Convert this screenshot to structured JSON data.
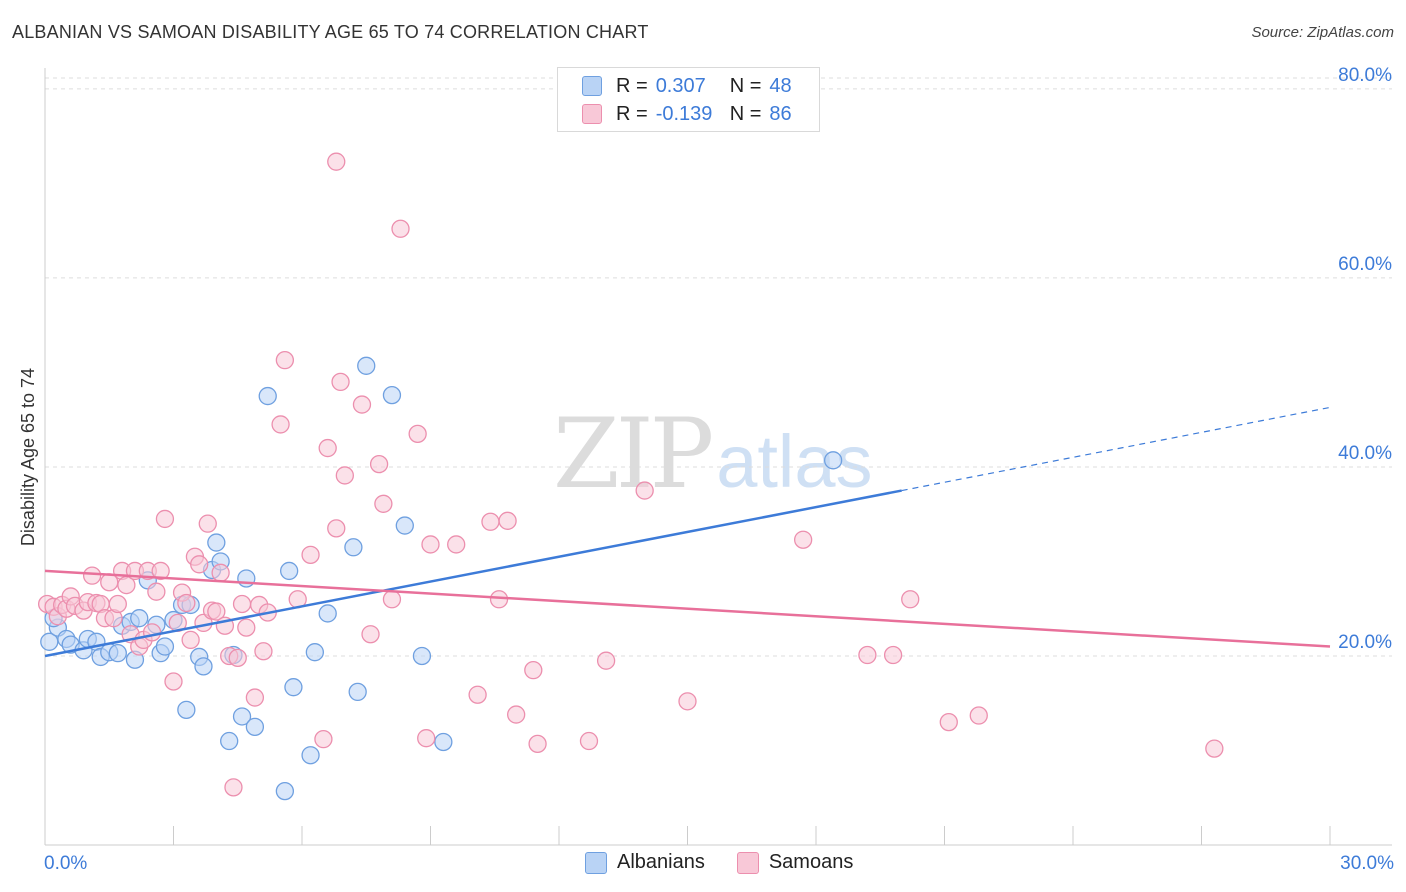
{
  "title": "ALBANIAN VS SAMOAN DISABILITY AGE 65 TO 74 CORRELATION CHART",
  "source": "Source: ZipAtlas.com",
  "watermark": {
    "zip": "ZIP",
    "atlas": "atlas"
  },
  "legend": {
    "r_label": "R =",
    "n_label": "N =",
    "series": [
      {
        "name": "Albanians",
        "r": "0.307",
        "n": "48",
        "color": "#3d7bd8"
      },
      {
        "name": "Samoans",
        "r": "-0.139",
        "n": "86",
        "color": "#e8709a"
      }
    ]
  },
  "chart_data": {
    "type": "scatter",
    "title": "ALBANIAN VS SAMOAN DISABILITY AGE 65 TO 74 CORRELATION CHART",
    "xlabel": "",
    "ylabel": "Disability Age 65 to 74",
    "xlim": [
      0,
      30
    ],
    "ylim": [
      0,
      82
    ],
    "x_tick_labels": [
      "0.0%",
      "30.0%"
    ],
    "y_ticks": [
      20,
      40,
      60,
      80
    ],
    "y_tick_labels": [
      "20.0%",
      "40.0%",
      "60.0%",
      "80.0%"
    ],
    "grid": true,
    "legend_position": "top-center",
    "series": [
      {
        "name": "Albanians",
        "color": "#3d7bd8",
        "fill": "#b9d3f5",
        "stroke": "#6fa0e0",
        "trend": {
          "x": [
            0,
            20
          ],
          "y": [
            20.0,
            37.5
          ],
          "dashed_extension": {
            "x": [
              20,
              30
            ],
            "y": [
              37.5,
              46.3
            ]
          }
        },
        "points": [
          [
            0.1,
            21.5
          ],
          [
            0.3,
            23.0
          ],
          [
            0.5,
            21.8
          ],
          [
            0.6,
            21.2
          ],
          [
            0.9,
            20.6
          ],
          [
            1.0,
            21.8
          ],
          [
            1.2,
            21.5
          ],
          [
            1.3,
            19.9
          ],
          [
            1.5,
            20.4
          ],
          [
            1.7,
            20.3
          ],
          [
            1.8,
            23.2
          ],
          [
            2.0,
            23.6
          ],
          [
            2.1,
            19.6
          ],
          [
            2.2,
            24.0
          ],
          [
            2.4,
            28.0
          ],
          [
            2.6,
            23.3
          ],
          [
            2.7,
            20.3
          ],
          [
            2.8,
            21.0
          ],
          [
            3.0,
            23.8
          ],
          [
            3.2,
            25.4
          ],
          [
            3.3,
            14.3
          ],
          [
            3.4,
            25.4
          ],
          [
            3.6,
            19.9
          ],
          [
            3.7,
            18.9
          ],
          [
            3.9,
            29.1
          ],
          [
            4.0,
            32.0
          ],
          [
            4.1,
            30.0
          ],
          [
            4.3,
            11.0
          ],
          [
            4.4,
            20.1
          ],
          [
            4.6,
            13.6
          ],
          [
            4.7,
            28.2
          ],
          [
            4.9,
            12.5
          ],
          [
            5.2,
            47.5
          ],
          [
            5.6,
            5.7
          ],
          [
            5.7,
            29.0
          ],
          [
            5.8,
            16.7
          ],
          [
            6.2,
            9.5
          ],
          [
            6.3,
            20.4
          ],
          [
            6.6,
            24.5
          ],
          [
            7.2,
            31.5
          ],
          [
            7.3,
            16.2
          ],
          [
            7.5,
            50.7
          ],
          [
            8.1,
            47.6
          ],
          [
            8.4,
            33.8
          ],
          [
            8.8,
            20.0
          ],
          [
            9.3,
            10.9
          ],
          [
            18.4,
            40.7
          ],
          [
            0.2,
            24.0
          ]
        ]
      },
      {
        "name": "Samoans",
        "color": "#e8709a",
        "fill": "#f8c8d7",
        "stroke": "#ec8fae",
        "trend": {
          "x": [
            0,
            30
          ],
          "y": [
            29.0,
            21.0
          ]
        },
        "points": [
          [
            0.05,
            25.5
          ],
          [
            0.2,
            25.2
          ],
          [
            0.3,
            24.2
          ],
          [
            0.4,
            25.4
          ],
          [
            0.5,
            25.0
          ],
          [
            0.6,
            26.3
          ],
          [
            0.7,
            25.3
          ],
          [
            0.9,
            24.8
          ],
          [
            1.0,
            25.7
          ],
          [
            1.1,
            28.5
          ],
          [
            1.2,
            25.6
          ],
          [
            1.3,
            25.5
          ],
          [
            1.4,
            24.0
          ],
          [
            1.5,
            27.8
          ],
          [
            1.6,
            24.0
          ],
          [
            1.7,
            25.5
          ],
          [
            1.8,
            29.0
          ],
          [
            1.9,
            27.5
          ],
          [
            2.0,
            22.3
          ],
          [
            2.1,
            29.0
          ],
          [
            2.2,
            21.0
          ],
          [
            2.3,
            21.7
          ],
          [
            2.4,
            29.0
          ],
          [
            2.5,
            22.5
          ],
          [
            2.6,
            26.8
          ],
          [
            2.7,
            29.0
          ],
          [
            2.8,
            34.5
          ],
          [
            3.0,
            17.3
          ],
          [
            3.1,
            23.5
          ],
          [
            3.2,
            26.7
          ],
          [
            3.3,
            25.6
          ],
          [
            3.4,
            21.7
          ],
          [
            3.5,
            30.5
          ],
          [
            3.6,
            29.7
          ],
          [
            3.7,
            23.5
          ],
          [
            3.8,
            34.0
          ],
          [
            3.9,
            24.8
          ],
          [
            4.0,
            24.7
          ],
          [
            4.1,
            28.8
          ],
          [
            4.2,
            23.2
          ],
          [
            4.3,
            20.0
          ],
          [
            4.4,
            6.1
          ],
          [
            4.5,
            19.8
          ],
          [
            4.6,
            25.5
          ],
          [
            4.7,
            23.0
          ],
          [
            4.9,
            15.6
          ],
          [
            5.0,
            25.4
          ],
          [
            5.1,
            20.5
          ],
          [
            5.2,
            24.6
          ],
          [
            5.5,
            44.5
          ],
          [
            5.6,
            51.3
          ],
          [
            5.9,
            26.0
          ],
          [
            6.2,
            30.7
          ],
          [
            6.5,
            11.2
          ],
          [
            6.6,
            42.0
          ],
          [
            6.8,
            33.5
          ],
          [
            6.9,
            49.0
          ],
          [
            7.0,
            39.1
          ],
          [
            7.4,
            46.6
          ],
          [
            7.6,
            22.3
          ],
          [
            7.8,
            40.3
          ],
          [
            7.9,
            36.1
          ],
          [
            8.1,
            26.0
          ],
          [
            8.3,
            65.2
          ],
          [
            8.7,
            43.5
          ],
          [
            8.9,
            11.3
          ],
          [
            9.0,
            31.8
          ],
          [
            9.6,
            31.8
          ],
          [
            10.1,
            15.9
          ],
          [
            10.4,
            34.2
          ],
          [
            10.6,
            26.0
          ],
          [
            10.8,
            34.3
          ],
          [
            11.0,
            13.8
          ],
          [
            11.4,
            18.5
          ],
          [
            11.5,
            10.7
          ],
          [
            12.7,
            11.0
          ],
          [
            13.1,
            19.5
          ],
          [
            14.0,
            37.5
          ],
          [
            15.0,
            15.2
          ],
          [
            17.7,
            32.3
          ],
          [
            19.2,
            20.1
          ],
          [
            19.8,
            20.1
          ],
          [
            20.2,
            26.0
          ],
          [
            21.1,
            13.0
          ],
          [
            21.8,
            13.7
          ],
          [
            27.3,
            10.2
          ]
        ]
      }
    ]
  },
  "extra_points": {
    "samoan_high": [
      6.8,
      72.3
    ]
  }
}
